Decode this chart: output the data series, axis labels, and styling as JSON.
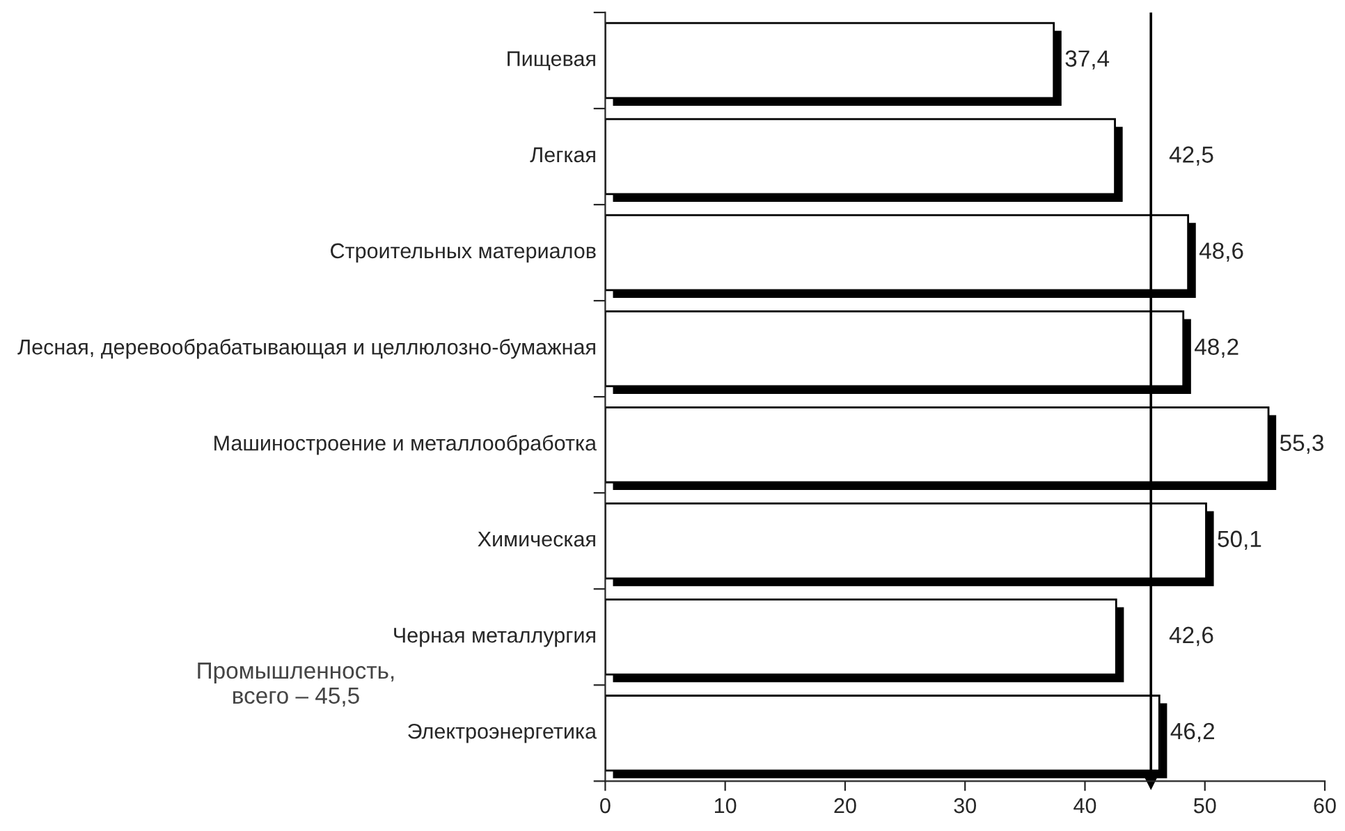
{
  "chart_data": {
    "type": "bar",
    "orientation": "horizontal",
    "categories": [
      "Пищевая",
      "Легкая",
      "Строительных материалов",
      "Лесная, деревообрабатывающая и целлюлозно-бумажная",
      "Машиностроение и металлообработка",
      "Химическая",
      "Черная металлургия",
      "Электроэнергетика"
    ],
    "values": [
      37.4,
      42.5,
      48.6,
      48.2,
      55.3,
      50.1,
      42.6,
      46.2
    ],
    "value_labels": [
      "37,4",
      "42,5",
      "48,6",
      "48,2",
      "55,3",
      "50,1",
      "42,6",
      "46,2"
    ],
    "color": "#ffffff",
    "xlim": [
      0,
      60
    ],
    "xticks": [
      0,
      10,
      20,
      30,
      40,
      50,
      60
    ],
    "ref_lines": [
      {
        "axis": "x",
        "value": 45.5,
        "color": "#000000"
      }
    ],
    "annotations": [
      "Промышленность,\nвсего – 45,5"
    ],
    "grid": false,
    "legend": false
  }
}
